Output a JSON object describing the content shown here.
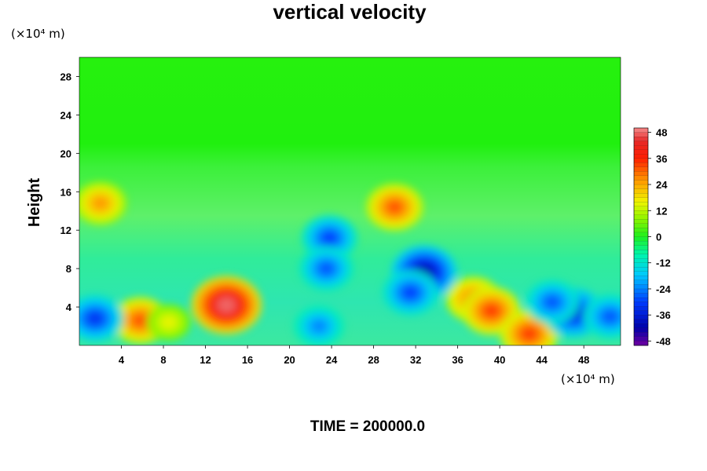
{
  "chart_data": {
    "type": "heatmap",
    "title": "vertical velocity",
    "ylabel": "Height",
    "xlabel": "",
    "y_unit": "(×10⁴ m)",
    "x_unit": "(×10⁴ m)",
    "xlim": [
      0,
      51.5
    ],
    "ylim": [
      0,
      30
    ],
    "x_ticks": [
      4,
      8,
      12,
      16,
      20,
      24,
      28,
      32,
      36,
      40,
      44,
      48
    ],
    "y_ticks": [
      4,
      8,
      12,
      16,
      20,
      24,
      28
    ],
    "colorbar": {
      "range": [
        -50,
        50
      ],
      "ticks": [
        48,
        36,
        24,
        12,
        0,
        -12,
        -24,
        -36,
        -48
      ]
    },
    "features": [
      {
        "x": 14,
        "y": 4.2,
        "value": 48
      },
      {
        "x": 5.8,
        "y": 2.6,
        "value": 32
      },
      {
        "x": 8.5,
        "y": 2.4,
        "value": 16
      },
      {
        "x": 37.5,
        "y": 4.8,
        "value": 30
      },
      {
        "x": 39.2,
        "y": 3.6,
        "value": 34
      },
      {
        "x": 42.8,
        "y": 1.2,
        "value": 34
      },
      {
        "x": 1.5,
        "y": 2.8,
        "value": -32
      },
      {
        "x": 32.8,
        "y": 7.6,
        "value": -42
      },
      {
        "x": 31.5,
        "y": 5.5,
        "value": -30
      },
      {
        "x": 47,
        "y": 3.4,
        "value": -36
      },
      {
        "x": 45,
        "y": 4.5,
        "value": -28
      },
      {
        "x": 50.5,
        "y": 3,
        "value": -28
      },
      {
        "x": 30,
        "y": 14.4,
        "value": 32
      },
      {
        "x": 2,
        "y": 14.8,
        "value": 26
      },
      {
        "x": 23.8,
        "y": 11.2,
        "value": -30
      },
      {
        "x": 22.8,
        "y": 2,
        "value": -24
      },
      {
        "x": 23.5,
        "y": 8,
        "value": -28
      }
    ],
    "annotation": "TIME = 200000.0"
  }
}
